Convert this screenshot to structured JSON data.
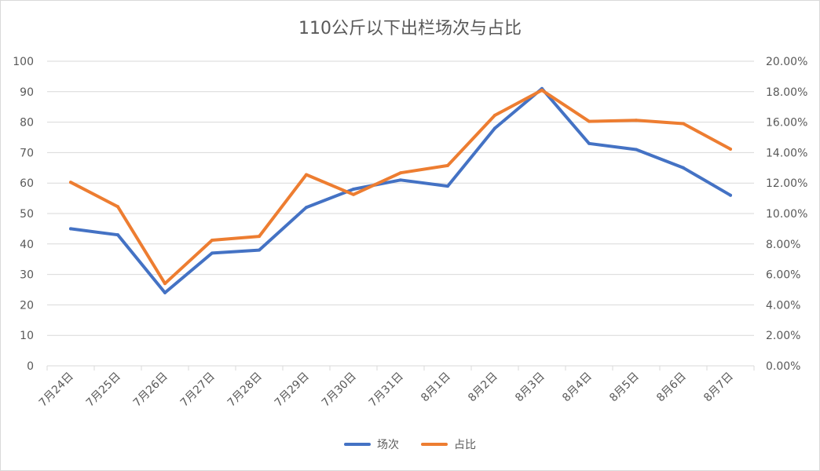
{
  "chart_data": {
    "type": "line",
    "title": "110公斤以下出栏场次与占比",
    "categories": [
      "7月24日",
      "7月25日",
      "7月26日",
      "7月27日",
      "7月28日",
      "7月29日",
      "7月30日",
      "7月31日",
      "8月1日",
      "8月2日",
      "8月3日",
      "8月4日",
      "8月5日",
      "8月6日",
      "8月7日"
    ],
    "series": [
      {
        "name": "场次",
        "axis": "left",
        "color": "#4472c4",
        "values": [
          45,
          43,
          24,
          37,
          38,
          52,
          58,
          61,
          59,
          78,
          91,
          73,
          71,
          65,
          56
        ]
      },
      {
        "name": "占比",
        "axis": "right",
        "color": "#ed7d31",
        "values": [
          12.05,
          10.45,
          5.4,
          8.25,
          8.5,
          12.55,
          11.25,
          12.67,
          13.15,
          16.45,
          18.1,
          16.05,
          16.12,
          15.9,
          14.23
        ]
      }
    ],
    "y_left": {
      "min": 0,
      "max": 100,
      "step": 10,
      "ticks": [
        "0",
        "10",
        "20",
        "30",
        "40",
        "50",
        "60",
        "70",
        "80",
        "90",
        "100"
      ]
    },
    "y_right": {
      "min": 0,
      "max": 20,
      "step": 2,
      "ticks": [
        "0.00%",
        "2.00%",
        "4.00%",
        "6.00%",
        "8.00%",
        "10.00%",
        "12.00%",
        "14.00%",
        "16.00%",
        "18.00%",
        "20.00%"
      ]
    },
    "grid": true,
    "legend_position": "bottom"
  }
}
